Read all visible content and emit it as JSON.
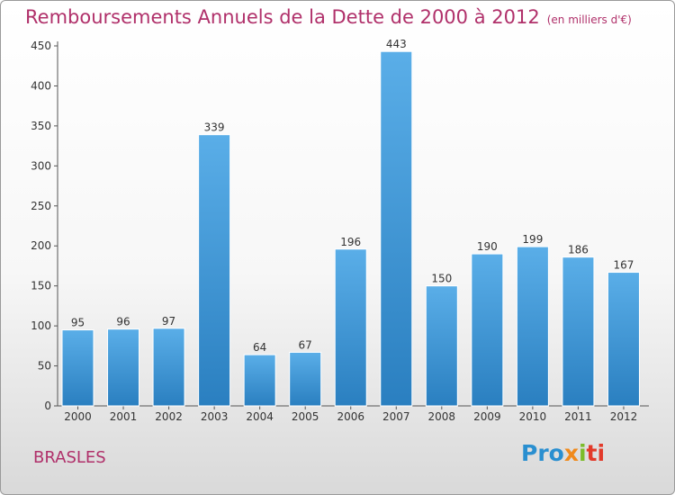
{
  "page": {
    "title": "Remboursements Annuels de la Dette de 2000 à 2012",
    "unit": "(en milliers d'€)",
    "commune": "BRASLES",
    "logo": {
      "p1": "Pro",
      "p2": "x",
      "p3": "i",
      "p4": "ti"
    }
  },
  "chart_data": {
    "type": "bar",
    "title": "Remboursements Annuels de la Dette de 2000 à 2012",
    "subtitle": "(en milliers d'€)",
    "categories": [
      "2000",
      "2001",
      "2002",
      "2003",
      "2004",
      "2005",
      "2006",
      "2007",
      "2008",
      "2009",
      "2010",
      "2011",
      "2012"
    ],
    "values": [
      95,
      96,
      97,
      339,
      64,
      67,
      196,
      443,
      150,
      190,
      199,
      186,
      167
    ],
    "ylim": [
      0,
      450
    ],
    "yticks": [
      0,
      50,
      100,
      150,
      200,
      250,
      300,
      350,
      400,
      450
    ],
    "grid": false,
    "colors": {
      "bar_top": "#5aaee8",
      "bar_bottom": "#2a7fc0",
      "title": "#b0306a"
    }
  }
}
